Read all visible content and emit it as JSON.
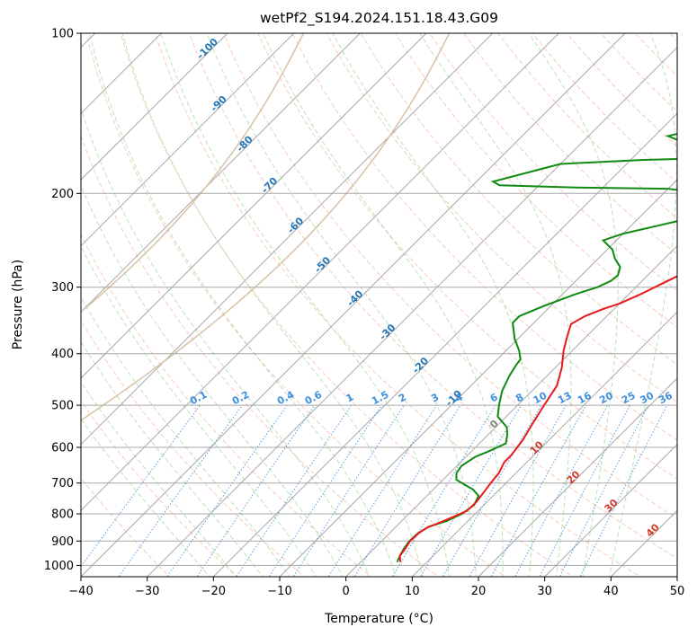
{
  "chart_data": {
    "type": "line",
    "subtype": "skew-t log-p",
    "title": "wetPf2_S194.2024.151.18.43.G09",
    "xlabel": "Temperature (°C)",
    "ylabel": "Pressure (hPa)",
    "xlim": [
      -40,
      50
    ],
    "ylim": [
      1050,
      100
    ],
    "y_scale": "log",
    "grid": true,
    "x_ticks": [
      -40,
      -30,
      -20,
      -10,
      0,
      10,
      20,
      30,
      40,
      50
    ],
    "x_tick_labels": [
      "−40",
      "−30",
      "−20",
      "−10",
      "0",
      "10",
      "20",
      "30",
      "40",
      "50"
    ],
    "y_ticks": [
      1000,
      900,
      800,
      700,
      600,
      500,
      400,
      300,
      200,
      100
    ],
    "y_tick_labels": [
      "1000",
      "900",
      "800",
      "700",
      "600",
      "500",
      "400",
      "300",
      "200",
      "100"
    ],
    "colors": {
      "temperature": "#e8191b",
      "dewpoint": "#118a11",
      "isotherm": "#a8a8a8",
      "dry_adiabat": "#f4a07e",
      "moist_adiabat": "#8ccf8c",
      "mixing_ratio": "#3d8fe0",
      "isotherm_label": "#2376b7",
      "warm_label": "#d43a2a",
      "zero_label": "#808080",
      "wetbulb_zero": "#d8c2a4"
    },
    "series": [
      {
        "name": "Temperature",
        "points": [
          [
            6,
            985
          ],
          [
            5,
            960
          ],
          [
            4.7,
            930
          ],
          [
            4.3,
            900
          ],
          [
            4.4,
            870
          ],
          [
            4.8,
            850
          ],
          [
            6,
            830
          ],
          [
            7.2,
            810
          ],
          [
            8.3,
            790
          ],
          [
            8.4,
            760
          ],
          [
            7.7,
            700
          ],
          [
            7.4,
            670
          ],
          [
            6.6,
            640
          ],
          [
            6.6,
            620
          ],
          [
            6,
            580
          ],
          [
            5,
            540
          ],
          [
            4,
            500
          ],
          [
            3,
            460
          ],
          [
            1,
            425
          ],
          [
            -1.3,
            395
          ],
          [
            -3,
            370
          ],
          [
            -4.2,
            352
          ],
          [
            -3.3,
            340
          ],
          [
            -1.7,
            330
          ],
          [
            0,
            322
          ],
          [
            1.7,
            310
          ],
          [
            3.5,
            295
          ],
          [
            6,
            275
          ],
          [
            9,
            258
          ],
          [
            12,
            240
          ],
          [
            14.6,
            225
          ],
          [
            16.6,
            210
          ],
          [
            18.6,
            195
          ],
          [
            20.6,
            180
          ],
          [
            23,
            165
          ],
          [
            24.3,
            155
          ],
          [
            25.3,
            145
          ],
          [
            25.6,
            135
          ],
          [
            25.6,
            130
          ],
          [
            25.7,
            125
          ],
          [
            26.5,
            120
          ],
          [
            27.8,
            115
          ],
          [
            28.5,
            112
          ],
          [
            29.2,
            108
          ],
          [
            30.1,
            105
          ],
          [
            31.5,
            102
          ],
          [
            33,
            100
          ]
        ]
      },
      {
        "name": "Dewpoint",
        "points": [
          [
            5.5,
            985
          ],
          [
            5,
            960
          ],
          [
            4.5,
            930
          ],
          [
            4.2,
            900
          ],
          [
            4.3,
            870
          ],
          [
            5,
            845
          ],
          [
            6.8,
            825
          ],
          [
            8,
            800
          ],
          [
            8.5,
            770
          ],
          [
            7.8,
            740
          ],
          [
            6,
            720
          ],
          [
            4,
            705
          ],
          [
            2,
            690
          ],
          [
            1,
            670
          ],
          [
            0.7,
            650
          ],
          [
            1.4,
            625
          ],
          [
            2.6,
            610
          ],
          [
            4,
            590
          ],
          [
            3,
            570
          ],
          [
            1.7,
            550
          ],
          [
            -1.3,
            525
          ],
          [
            -2.8,
            500
          ],
          [
            -4.5,
            470
          ],
          [
            -5.7,
            440
          ],
          [
            -6.3,
            420
          ],
          [
            -6.5,
            410
          ],
          [
            -8,
            395
          ],
          [
            -10.5,
            375
          ],
          [
            -13.2,
            350
          ],
          [
            -13.2,
            340
          ],
          [
            -11,
            325
          ],
          [
            -8.2,
            310
          ],
          [
            -5.8,
            300
          ],
          [
            -4.7,
            292
          ],
          [
            -4.5,
            285
          ],
          [
            -5.4,
            275
          ],
          [
            -7.5,
            265
          ],
          [
            -9.2,
            255
          ],
          [
            -12,
            245
          ],
          [
            -10,
            238
          ],
          [
            -6,
            230
          ],
          [
            -3,
            224
          ],
          [
            -1.2,
            218
          ],
          [
            0,
            212
          ],
          [
            -1,
            205
          ],
          [
            -4,
            200
          ],
          [
            -10,
            196
          ],
          [
            -24,
            195
          ],
          [
            -36,
            193
          ],
          [
            -37.5,
            190
          ],
          [
            -30,
            176
          ],
          [
            -18,
            173
          ],
          [
            -11,
            172
          ],
          [
            -7,
            169
          ],
          [
            -8,
            166
          ],
          [
            -10,
            164
          ],
          [
            -15,
            160
          ],
          [
            -18,
            156
          ],
          [
            -16.5,
            154
          ],
          [
            -14,
            153
          ],
          [
            -10,
            152
          ],
          [
            -7,
            150
          ],
          [
            -4.5,
            145
          ],
          [
            -2,
            140
          ],
          [
            1,
            133
          ],
          [
            3,
            125
          ],
          [
            4.3,
            120
          ],
          [
            6,
            115
          ],
          [
            8,
            110
          ],
          [
            10,
            105
          ],
          [
            11,
            102
          ],
          [
            12,
            100
          ]
        ]
      }
    ],
    "isotherm_labels": [
      "-100",
      "-90",
      "-80",
      "-70",
      "-60",
      "-50",
      "-40",
      "-30",
      "-20",
      "-10",
      "0",
      "10",
      "20",
      "30",
      "40"
    ],
    "mixing_ratio_labels": [
      "0.1",
      "0.2",
      "0.4",
      "0.6",
      "1",
      "1.5",
      "2",
      "3",
      "4",
      "6",
      "8",
      "10",
      "13",
      "16",
      "20",
      "25",
      "30",
      "36"
    ],
    "mixing_ratio_values": [
      0.1,
      0.2,
      0.4,
      0.6,
      1,
      1.5,
      2,
      3,
      4,
      6,
      8,
      10,
      13,
      16,
      20,
      25,
      30,
      36
    ]
  }
}
